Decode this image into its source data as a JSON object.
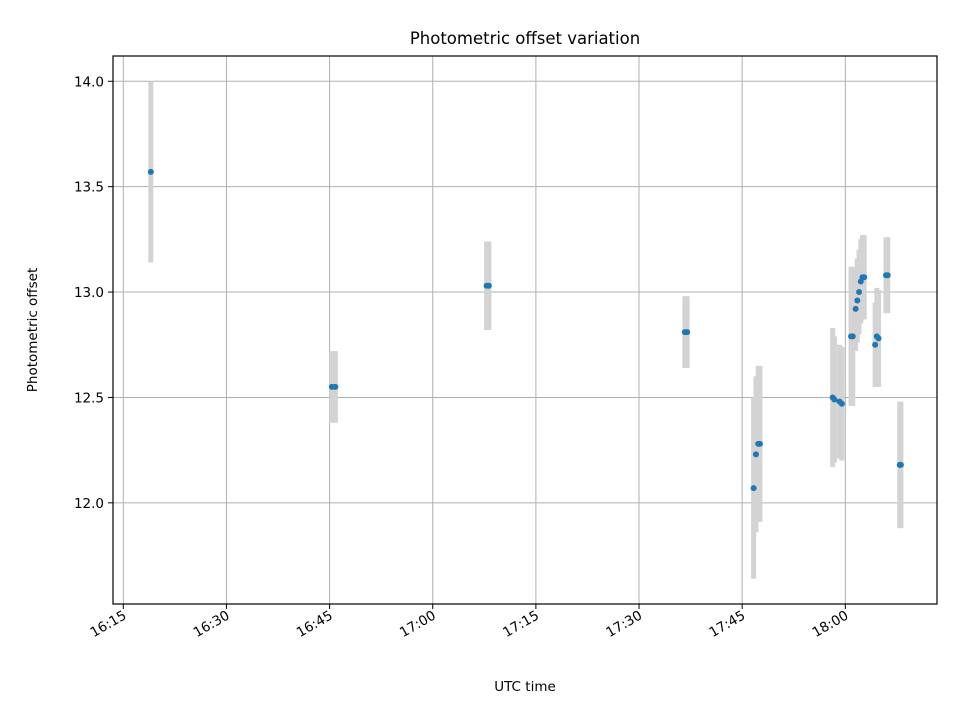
{
  "chart_data": {
    "type": "scatter",
    "title": "Photometric offset variation",
    "xlabel": "UTC time",
    "ylabel": "Photometric offset",
    "x_axis_type": "time",
    "x_ticks": [
      "16:15",
      "16:30",
      "16:45",
      "17:00",
      "17:15",
      "17:30",
      "17:45",
      "18:00"
    ],
    "y_ticks": [
      "12.0",
      "12.5",
      "13.0",
      "13.5",
      "14.0"
    ],
    "xlim": [
      "16:13:30",
      "18:13:20"
    ],
    "ylim": [
      11.52,
      14.12
    ],
    "grid": true,
    "errorbar_color": "#d3d3d3",
    "point_color": "#1f77b4",
    "points": [
      {
        "time": "16:19:00",
        "y": 13.57,
        "err": 0.43
      },
      {
        "time": "16:45:20",
        "y": 12.55,
        "err": 0.17
      },
      {
        "time": "16:45:50",
        "y": 12.55,
        "err": 0.17
      },
      {
        "time": "17:07:50",
        "y": 13.03,
        "err": 0.21
      },
      {
        "time": "17:08:10",
        "y": 13.03,
        "err": 0.21
      },
      {
        "time": "17:36:40",
        "y": 12.81,
        "err": 0.17
      },
      {
        "time": "17:37:00",
        "y": 12.81,
        "err": 0.17
      },
      {
        "time": "17:46:40",
        "y": 12.07,
        "err": 0.43
      },
      {
        "time": "17:47:00",
        "y": 12.23,
        "err": 0.37
      },
      {
        "time": "17:47:20",
        "y": 12.28,
        "err": 0.37
      },
      {
        "time": "17:47:35",
        "y": 12.28,
        "err": 0.37
      },
      {
        "time": "17:58:10",
        "y": 12.5,
        "err": 0.33
      },
      {
        "time": "17:58:25",
        "y": 12.49,
        "err": 0.3
      },
      {
        "time": "17:59:10",
        "y": 12.48,
        "err": 0.27
      },
      {
        "time": "17:59:30",
        "y": 12.47,
        "err": 0.27
      },
      {
        "time": "18:00:50",
        "y": 12.79,
        "err": 0.33
      },
      {
        "time": "18:01:05",
        "y": 12.79,
        "err": 0.33
      },
      {
        "time": "18:01:30",
        "y": 12.92,
        "err": 0.2
      },
      {
        "time": "18:01:45",
        "y": 12.96,
        "err": 0.2
      },
      {
        "time": "18:02:00",
        "y": 13.0,
        "err": 0.2
      },
      {
        "time": "18:02:15",
        "y": 13.05,
        "err": 0.2
      },
      {
        "time": "18:02:30",
        "y": 13.07,
        "err": 0.2
      },
      {
        "time": "18:02:45",
        "y": 13.07,
        "err": 0.2
      },
      {
        "time": "18:04:20",
        "y": 12.75,
        "err": 0.2
      },
      {
        "time": "18:04:35",
        "y": 12.79,
        "err": 0.23
      },
      {
        "time": "18:04:50",
        "y": 12.78,
        "err": 0.23
      },
      {
        "time": "18:05:55",
        "y": 13.08,
        "err": 0.18
      },
      {
        "time": "18:06:10",
        "y": 13.08,
        "err": 0.18
      },
      {
        "time": "18:07:55",
        "y": 12.18,
        "err": 0.3
      },
      {
        "time": "18:08:05",
        "y": 12.18,
        "err": 0.3
      }
    ]
  }
}
